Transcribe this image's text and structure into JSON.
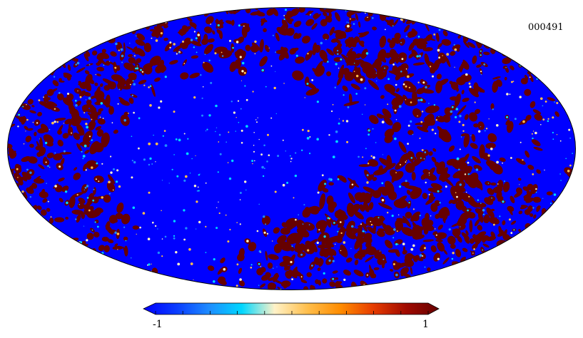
{
  "map": {
    "id_label": "000491",
    "projection": "mollweide",
    "field": "random-blobs",
    "palette_low": "#0000ff",
    "palette_high": "#660000"
  },
  "colorbar": {
    "min_label": "-1",
    "max_label": "1",
    "min": -1,
    "max": 1,
    "ticks": [
      -1,
      -0.8,
      -0.6,
      -0.4,
      -0.2,
      0,
      0.2,
      0.4,
      0.6,
      0.8,
      1
    ],
    "extend": "both",
    "colormap": [
      "#0000ff",
      "#0a3cff",
      "#1e8cff",
      "#00d7ff",
      "#fff2c8",
      "#ffbe4b",
      "#ff8c00",
      "#e63c00",
      "#a00a00",
      "#660000"
    ]
  }
}
